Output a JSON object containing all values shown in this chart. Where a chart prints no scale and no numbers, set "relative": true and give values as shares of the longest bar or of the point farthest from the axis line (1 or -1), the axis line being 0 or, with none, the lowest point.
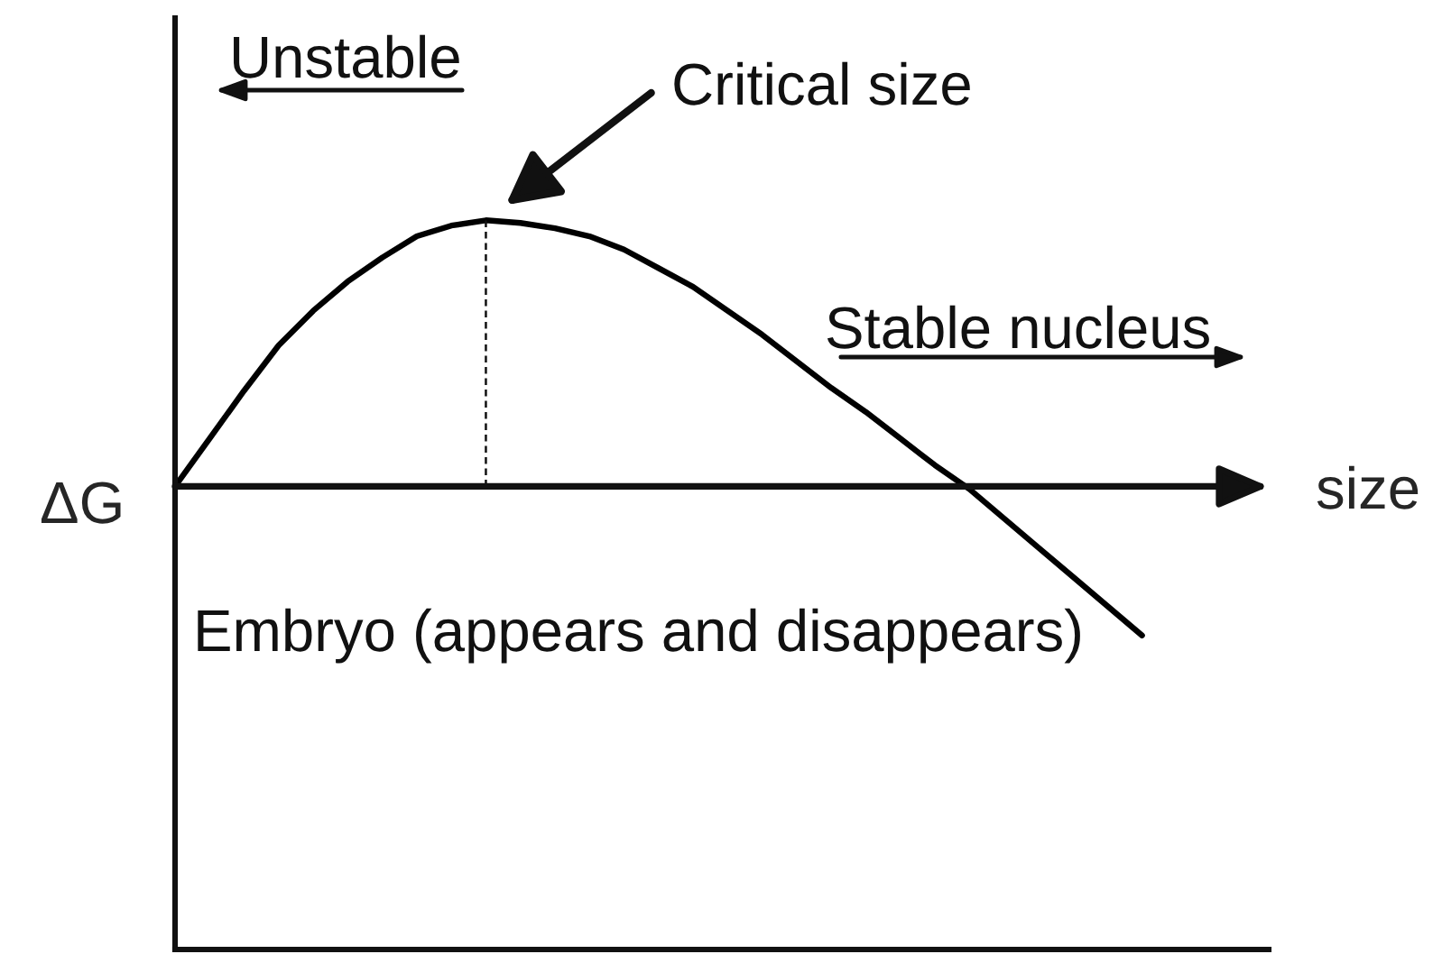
{
  "chart_data": {
    "type": "line",
    "relative": true,
    "xlabel": "size",
    "ylabel": "ΔG",
    "categories": [
      null,
      null,
      null,
      null,
      null,
      null,
      null,
      null,
      null,
      null,
      null,
      null,
      null,
      null,
      null,
      null,
      null,
      null,
      null,
      null,
      null,
      null,
      null,
      null,
      null,
      null,
      null,
      null,
      null
    ],
    "series": [
      {
        "color": "#000000",
        "values": [
          0,
          0.18,
          0.36,
          0.53,
          0.66,
          0.77,
          0.86,
          0.94,
          0.98,
          1.0,
          0.99,
          0.97,
          0.94,
          0.89,
          0.82,
          0.75,
          0.66,
          0.57,
          0.47,
          0.37,
          0.28,
          0.18,
          0.08,
          -0.01,
          -0.12,
          -0.23,
          -0.34,
          -0.45,
          -0.56
        ]
      }
    ],
    "annotations": [
      "Unstable",
      "Critical size",
      "Stable nucleus",
      "Embryo (appears and disappears)"
    ]
  }
}
